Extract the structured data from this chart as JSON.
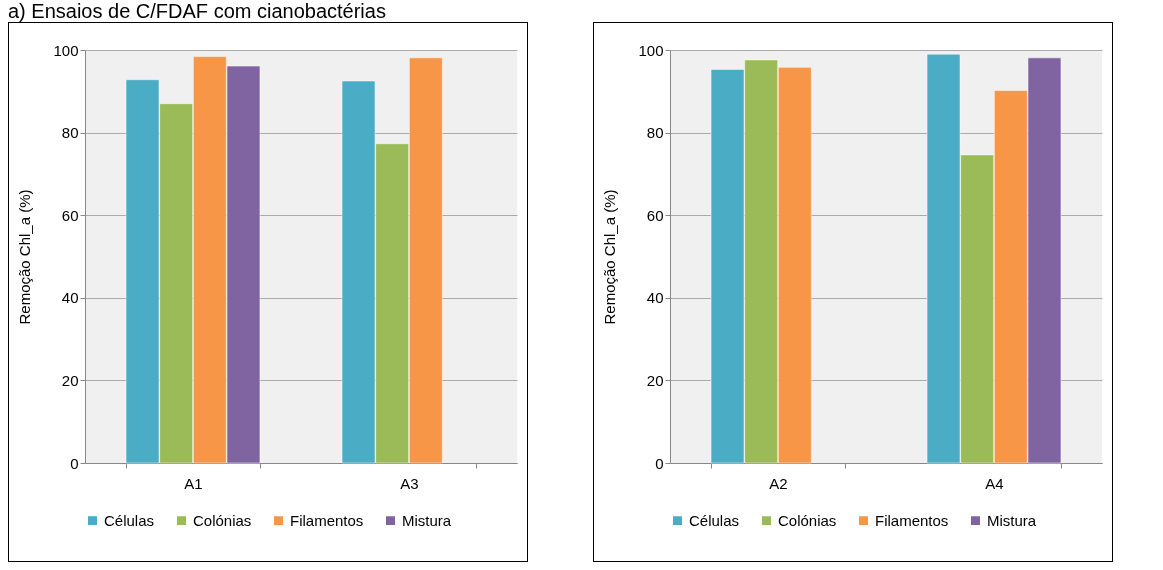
{
  "chart_data": [
    {
      "type": "bar",
      "title": "a) Ensaios de C/FDAF com cianobactérias",
      "ylabel": "Remoção Chl_a  (%)",
      "categories": [
        "A1",
        "A3"
      ],
      "ylim": [
        0,
        100
      ],
      "yticks": [
        0,
        20,
        40,
        60,
        80,
        100
      ],
      "grid": "y",
      "legend": "bottom",
      "series": [
        {
          "name": "Células",
          "color": "#4bacc6",
          "values": [
            92.8,
            92.5
          ]
        },
        {
          "name": "Colónias",
          "color": "#9bbb59",
          "values": [
            87.0,
            77.3
          ]
        },
        {
          "name": "Filamentos",
          "color": "#f79646",
          "values": [
            98.4,
            98.1
          ]
        },
        {
          "name": "Mistura",
          "color": "#8064a2",
          "values": [
            96.1,
            null
          ]
        }
      ]
    },
    {
      "type": "bar",
      "ylabel": "Remoção Chl_a  (%)",
      "categories": [
        "A2",
        "A4"
      ],
      "ylim": [
        0,
        100
      ],
      "yticks": [
        0,
        20,
        40,
        60,
        80,
        100
      ],
      "grid": "y",
      "legend": "bottom",
      "series": [
        {
          "name": "Células",
          "color": "#4bacc6",
          "values": [
            95.3,
            99.0
          ]
        },
        {
          "name": "Colónias",
          "color": "#9bbb59",
          "values": [
            97.6,
            74.6
          ]
        },
        {
          "name": "Filamentos",
          "color": "#f79646",
          "values": [
            95.8,
            90.2
          ]
        },
        {
          "name": "Mistura",
          "color": "#8064a2",
          "values": [
            null,
            98.1
          ]
        }
      ]
    }
  ]
}
